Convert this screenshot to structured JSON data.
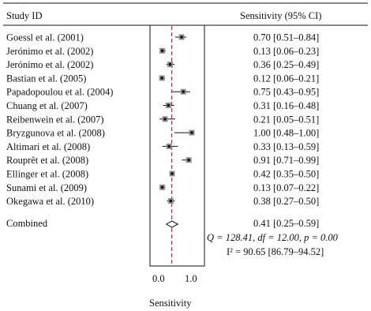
{
  "chart_data": {
    "type": "forest",
    "header": {
      "study": "Study ID",
      "estimate": "Sensitivity (95% CI)"
    },
    "xlabel": "Sensitivity",
    "xlim": [
      0.0,
      1.0
    ],
    "xticks": [
      "0.0",
      "1.0"
    ],
    "reference_line": 0.41,
    "studies": [
      {
        "label": "Goessl et al. (2001)",
        "value": 0.7,
        "lo": 0.51,
        "hi": 0.84,
        "text": "0.70 [0.51–0.84]"
      },
      {
        "label": "Jerónimo et al. (2002)",
        "value": 0.13,
        "lo": 0.06,
        "hi": 0.23,
        "text": "0.13 [0.06–0.23]"
      },
      {
        "label": "Jerónimo et al. (2002)",
        "value": 0.36,
        "lo": 0.25,
        "hi": 0.49,
        "text": "0.36 [0.25–0.49]"
      },
      {
        "label": "Bastian et al. (2005)",
        "value": 0.12,
        "lo": 0.06,
        "hi": 0.21,
        "text": "0.12 [0.06–0.21]"
      },
      {
        "label": "Papadopoulou et al. (2004)",
        "value": 0.75,
        "lo": 0.43,
        "hi": 0.95,
        "text": "0.75 [0.43–0.95]"
      },
      {
        "label": "Chuang et al. (2007)",
        "value": 0.31,
        "lo": 0.16,
        "hi": 0.48,
        "text": "0.31 [0.16–0.48]"
      },
      {
        "label": "Reibenwein et al. (2007)",
        "value": 0.21,
        "lo": 0.05,
        "hi": 0.51,
        "text": "0.21 [0.05–0.51]"
      },
      {
        "label": "Bryzgunova et al. (2008)",
        "value": 1.0,
        "lo": 0.48,
        "hi": 1.0,
        "text": "1.00 [0.48–1.00]"
      },
      {
        "label": "Altimari et al. (2008)",
        "value": 0.33,
        "lo": 0.13,
        "hi": 0.59,
        "text": "0.33 [0.13–0.59]"
      },
      {
        "label": "Rouprêt et al. (2008)",
        "value": 0.91,
        "lo": 0.71,
        "hi": 0.99,
        "text": "0.91 [0.71–0.99]"
      },
      {
        "label": "Ellinger et al. (2008)",
        "value": 0.42,
        "lo": 0.35,
        "hi": 0.5,
        "text": "0.42 [0.35–0.50]"
      },
      {
        "label": "Sunami et al. (2009)",
        "value": 0.13,
        "lo": 0.07,
        "hi": 0.22,
        "text": "0.13 [0.07–0.22]"
      },
      {
        "label": "Okegawa et al. (2010)",
        "value": 0.38,
        "lo": 0.27,
        "hi": 0.5,
        "text": "0.38 [0.27–0.50]"
      }
    ],
    "combined": {
      "label": "Combined",
      "value": 0.41,
      "lo": 0.25,
      "hi": 0.59,
      "text": "0.41 [0.25–0.59]"
    },
    "heterogeneity_q": "Q = 128.41, df = 12.00, p = 0.00",
    "heterogeneity_i2": "I² = 90.65 [86.79–94.52]"
  }
}
